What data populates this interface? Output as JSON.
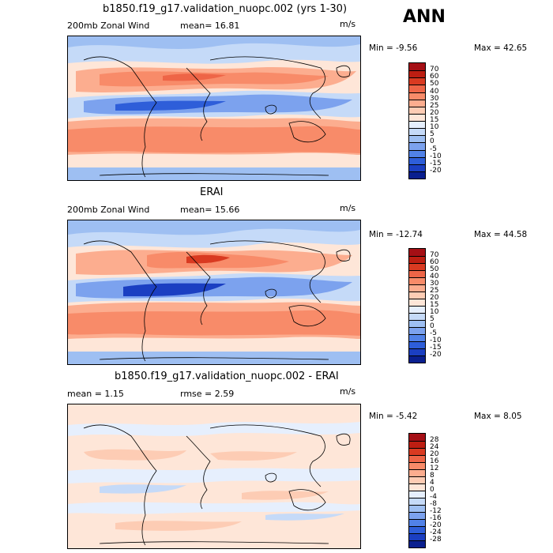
{
  "season": "ANN",
  "units": "m/s",
  "chart_data": [
    {
      "type": "contour-map",
      "title": "b1850.f19_g17.validation_nuopc.002 (yrs 1-30)",
      "variable": "200mb Zonal Wind",
      "stat_text": "mean=  16.81",
      "units": "m/s",
      "min_text": "Min =  -9.56",
      "max_text": "Max =  42.65",
      "levels": [
        "70",
        "60",
        "50",
        "40",
        "30",
        "25",
        "20",
        "15",
        "10",
        "5",
        "0",
        "-5",
        "-10",
        "-15",
        "-20"
      ],
      "colors": [
        "#a50f15",
        "#bd1e12",
        "#d93a21",
        "#ee6547",
        "#f88b69",
        "#fcad8f",
        "#fdccb4",
        "#fee6d8",
        "#e6effd",
        "#c5daf8",
        "#9ebff2",
        "#7ca2ee",
        "#5182e8",
        "#2e5ed9",
        "#1b3fc2",
        "#0a1f8f"
      ]
    },
    {
      "type": "contour-map",
      "title": "ERAI",
      "variable": "200mb Zonal Wind",
      "stat_text": "mean=  15.66",
      "units": "m/s",
      "min_text": "Min = -12.74",
      "max_text": "Max =  44.58",
      "levels": [
        "70",
        "60",
        "50",
        "40",
        "30",
        "25",
        "20",
        "15",
        "10",
        "5",
        "0",
        "-5",
        "-10",
        "-15",
        "-20"
      ],
      "colors": [
        "#a50f15",
        "#bd1e12",
        "#d93a21",
        "#ee6547",
        "#f88b69",
        "#fcad8f",
        "#fdccb4",
        "#fee6d8",
        "#e6effd",
        "#c5daf8",
        "#9ebff2",
        "#7ca2ee",
        "#5182e8",
        "#2e5ed9",
        "#1b3fc2",
        "#0a1f8f"
      ]
    },
    {
      "type": "contour-map",
      "title": "b1850.f19_g17.validation_nuopc.002 - ERAI",
      "stat_text": "mean =    1.15",
      "rmse_text": "rmse =    2.59",
      "units": "m/s",
      "min_text": "Min =  -5.42",
      "max_text": "Max =   8.05",
      "levels": [
        "28",
        "24",
        "20",
        "16",
        "12",
        "8",
        "4",
        "0",
        "-4",
        "-8",
        "-12",
        "-16",
        "-20",
        "-24",
        "-28"
      ],
      "colors": [
        "#a50f15",
        "#bd1e12",
        "#d93a21",
        "#ee6547",
        "#f88b69",
        "#fcad8f",
        "#fdccb4",
        "#fee6d8",
        "#e6effd",
        "#c5daf8",
        "#9ebff2",
        "#7ca2ee",
        "#5182e8",
        "#2e5ed9",
        "#1b3fc2",
        "#0a1f8f"
      ]
    }
  ]
}
